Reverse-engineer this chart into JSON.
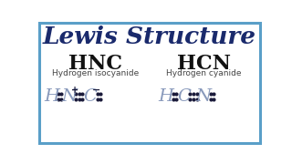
{
  "title": "Lewis Structure",
  "title_color": "#1a2a6c",
  "title_fontsize": 19,
  "bg_color": "#ffffff",
  "border_color": "#5a9fc8",
  "formula_left": "HNC",
  "formula_right": "HCN",
  "name_left": "Hydrogen isocyanide",
  "name_right": "Hydrogen cyanide",
  "formula_color": "#111111",
  "formula_fontsize": 16,
  "name_fontsize": 6.5,
  "name_color": "#444444",
  "dot_color": "#1a1a3a",
  "sketch_color": "#8899bb",
  "charge_color": "#1a1a3a"
}
